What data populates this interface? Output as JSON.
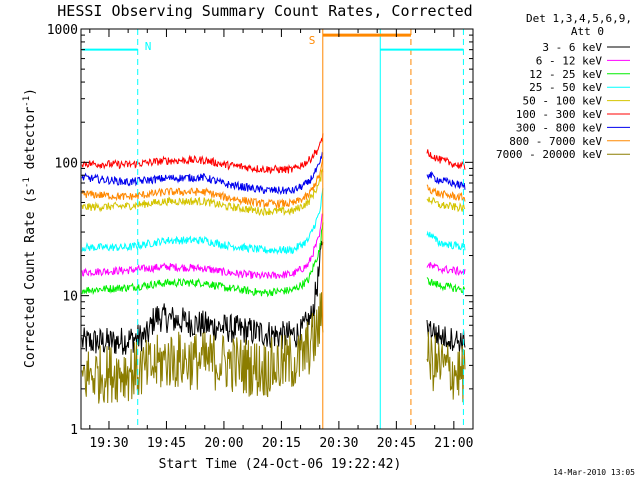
{
  "chart_data": {
    "type": "line",
    "title": "HESSI Observing Summary Count Rates, Corrected",
    "xlabel": "Start Time (24-Oct-06 19:22:42)",
    "ylabel_main": "Corrected Count Rate (s",
    "ylabel_sup1": "-1",
    "ylabel_mid": " detector",
    "ylabel_sup2": "-1",
    "ylabel_end": ")",
    "footer": "14-Mar-2010 13:05",
    "yscale": "log",
    "ylim": [
      1,
      1000
    ],
    "xlim_min": [
      1162.7,
      1265
    ],
    "x_ticks": [
      {
        "t": 1170,
        "label": "19:30"
      },
      {
        "t": 1185,
        "label": "19:45"
      },
      {
        "t": 1200,
        "label": "20:00"
      },
      {
        "t": 1215,
        "label": "20:15"
      },
      {
        "t": 1230,
        "label": "20:30"
      },
      {
        "t": 1245,
        "label": "20:45"
      },
      {
        "t": 1260,
        "label": "21:00"
      }
    ],
    "y_ticks": [
      {
        "v": 1,
        "label": "1"
      },
      {
        "v": 10,
        "label": "10"
      },
      {
        "v": 100,
        "label": "100"
      },
      {
        "v": 1000,
        "label": "1000"
      }
    ],
    "legend_header": [
      "Det 1,3,4,5,6,9,",
      "Att 0"
    ],
    "legend_position": "right",
    "series": [
      {
        "name": "3 - 6 keV",
        "color": "#000000",
        "values": [
          [
            1163,
            4.5
          ],
          [
            1172,
            4.5
          ],
          [
            1180,
            5
          ],
          [
            1182,
            7
          ],
          [
            1195,
            6
          ],
          [
            1205,
            5.5
          ],
          [
            1215,
            5
          ],
          [
            1220,
            5.2
          ],
          [
            1223,
            7
          ],
          [
            1225,
            16
          ],
          [
            1226,
            33
          ]
        ]
      },
      {
        "name": "6 - 12 keV",
        "color": "#ff00ff",
        "values": [
          [
            1163,
            15
          ],
          [
            1175,
            15.5
          ],
          [
            1185,
            16.5
          ],
          [
            1195,
            16
          ],
          [
            1200,
            15
          ],
          [
            1210,
            14
          ],
          [
            1218,
            14.5
          ],
          [
            1222,
            17
          ],
          [
            1225,
            28
          ],
          [
            1226,
            47
          ]
        ]
      },
      {
        "name": "12 - 25 keV",
        "color": "#00ee00",
        "values": [
          [
            1163,
            11
          ],
          [
            1175,
            11.5
          ],
          [
            1185,
            12.5
          ],
          [
            1195,
            12.5
          ],
          [
            1200,
            11.5
          ],
          [
            1210,
            10.5
          ],
          [
            1218,
            11
          ],
          [
            1222,
            13
          ],
          [
            1225,
            22
          ],
          [
            1226,
            40
          ]
        ]
      },
      {
        "name": "25 - 50 keV",
        "color": "#00ffff",
        "values": [
          [
            1163,
            23
          ],
          [
            1175,
            23
          ],
          [
            1185,
            26
          ],
          [
            1195,
            26
          ],
          [
            1200,
            24
          ],
          [
            1210,
            22
          ],
          [
            1218,
            22
          ],
          [
            1222,
            26
          ],
          [
            1225,
            42
          ],
          [
            1226,
            67
          ]
        ]
      },
      {
        "name": "50 - 100 keV",
        "color": "#d4c400",
        "values": [
          [
            1163,
            46
          ],
          [
            1175,
            47
          ],
          [
            1185,
            51
          ],
          [
            1195,
            51
          ],
          [
            1200,
            47
          ],
          [
            1210,
            43
          ],
          [
            1218,
            43
          ],
          [
            1222,
            50
          ],
          [
            1225,
            70
          ],
          [
            1226,
            95
          ]
        ]
      },
      {
        "name": "100 - 300 keV",
        "color": "#ff0000",
        "values": [
          [
            1163,
            98
          ],
          [
            1175,
            96
          ],
          [
            1185,
            103
          ],
          [
            1195,
            104
          ],
          [
            1200,
            96
          ],
          [
            1210,
            89
          ],
          [
            1218,
            88
          ],
          [
            1222,
            102
          ],
          [
            1225,
            130
          ],
          [
            1226,
            170
          ]
        ]
      },
      {
        "name": "300 - 800 keV",
        "color": "#0000ee",
        "values": [
          [
            1163,
            77
          ],
          [
            1175,
            71
          ],
          [
            1185,
            76
          ],
          [
            1195,
            77
          ],
          [
            1200,
            69
          ],
          [
            1210,
            62
          ],
          [
            1218,
            61
          ],
          [
            1222,
            70
          ],
          [
            1225,
            95
          ],
          [
            1226,
            125
          ]
        ]
      },
      {
        "name": "800 - 7000 keV",
        "color": "#ff8800",
        "values": [
          [
            1163,
            58
          ],
          [
            1175,
            55
          ],
          [
            1185,
            60
          ],
          [
            1195,
            60
          ],
          [
            1200,
            55
          ],
          [
            1210,
            49
          ],
          [
            1218,
            49
          ],
          [
            1222,
            56
          ],
          [
            1225,
            80
          ],
          [
            1226,
            110
          ]
        ]
      },
      {
        "name": "7000 - 20000 keV",
        "color": "#8b7d00",
        "values": [
          [
            1163,
            2.5
          ],
          [
            1180,
            2.8
          ],
          [
            1185,
            3.3
          ],
          [
            1200,
            3.2
          ],
          [
            1210,
            2.8
          ],
          [
            1220,
            3.3
          ],
          [
            1224,
            5
          ],
          [
            1226,
            8
          ]
        ]
      }
    ],
    "series_after_gap": [
      {
        "name": "3 - 6 keV",
        "values": [
          [
            1253,
            6
          ],
          [
            1256,
            5
          ],
          [
            1263,
            4.5
          ]
        ]
      },
      {
        "name": "6 - 12 keV",
        "values": [
          [
            1253,
            17
          ],
          [
            1256,
            16
          ],
          [
            1263,
            15
          ]
        ]
      },
      {
        "name": "12 - 25 keV",
        "values": [
          [
            1253,
            13
          ],
          [
            1256,
            12
          ],
          [
            1263,
            11
          ]
        ]
      },
      {
        "name": "25 - 50 keV",
        "values": [
          [
            1253,
            30
          ],
          [
            1256,
            25
          ],
          [
            1263,
            23
          ]
        ]
      },
      {
        "name": "50 - 100 keV",
        "values": [
          [
            1253,
            54
          ],
          [
            1256,
            48
          ],
          [
            1263,
            45
          ]
        ]
      },
      {
        "name": "100 - 300 keV",
        "values": [
          [
            1253,
            120
          ],
          [
            1256,
            105
          ],
          [
            1263,
            92
          ]
        ]
      },
      {
        "name": "300 - 800 keV",
        "values": [
          [
            1253,
            82
          ],
          [
            1256,
            74
          ],
          [
            1263,
            66
          ]
        ]
      },
      {
        "name": "800 - 7000 keV",
        "values": [
          [
            1253,
            65
          ],
          [
            1256,
            58
          ],
          [
            1263,
            54
          ]
        ]
      },
      {
        "name": "7000 - 20000 keV",
        "values": [
          [
            1253,
            3.3
          ],
          [
            1256,
            3
          ],
          [
            1263,
            2.5
          ]
        ]
      }
    ],
    "annotations": {
      "night_label": "N",
      "saa_label": "S",
      "night_color": "#00ffff",
      "saa_color": "#ff8800",
      "night_bar_level": 700,
      "night_intervals": [
        [
          1163,
          1177.5
        ],
        [
          1240.8,
          1262.5
        ]
      ],
      "saa_interval": [
        1225.8,
        1248.8
      ],
      "vlines": [
        {
          "t": 1177.5,
          "color": "#00ffff",
          "dash": true
        },
        {
          "t": 1225.8,
          "color": "#ff8800",
          "dash": false
        },
        {
          "t": 1240.8,
          "color": "#00ffff",
          "dash": false
        },
        {
          "t": 1248.8,
          "color": "#ff8800",
          "dash": true
        },
        {
          "t": 1262.5,
          "color": "#00ffff",
          "dash": true
        }
      ]
    }
  }
}
